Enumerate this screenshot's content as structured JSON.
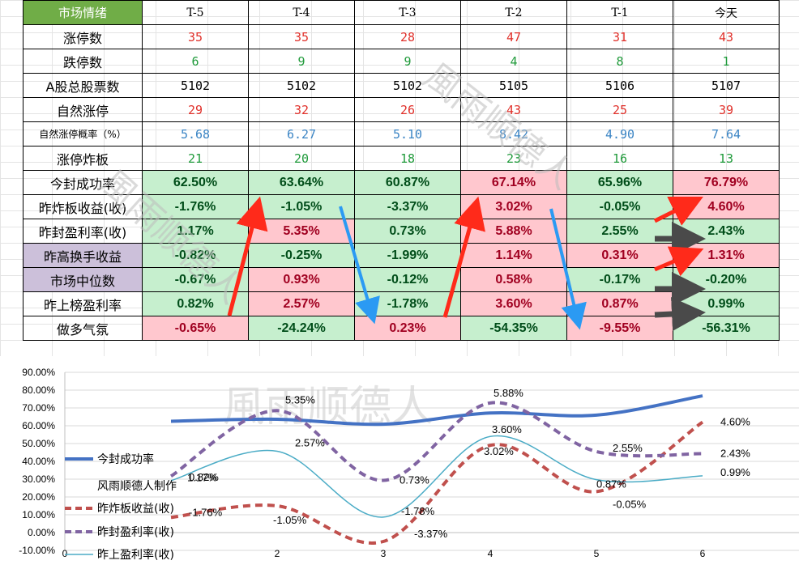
{
  "table": {
    "headers": [
      "市场情绪",
      "T-5",
      "T-4",
      "T-3",
      "T-2",
      "T-1",
      "今天"
    ],
    "rows": [
      {
        "label": "涨停数",
        "values": [
          "35",
          "35",
          "28",
          "47",
          "31",
          "43"
        ]
      },
      {
        "label": "跌停数",
        "values": [
          "6",
          "9",
          "9",
          "4",
          "8",
          "1"
        ]
      },
      {
        "label": "A股总股票数",
        "values": [
          "5102",
          "5102",
          "5102",
          "5105",
          "5106",
          "5107"
        ]
      },
      {
        "label": "自然涨停",
        "values": [
          "29",
          "32",
          "26",
          "43",
          "25",
          "39"
        ]
      },
      {
        "label": "自然涨停概率（%）",
        "values": [
          "5.68",
          "6.27",
          "5.10",
          "8.42",
          "4.90",
          "7.64"
        ]
      },
      {
        "label": "涨停炸板",
        "values": [
          "21",
          "20",
          "18",
          "23",
          "16",
          "13"
        ]
      },
      {
        "label": "今封成功率",
        "values": [
          "62.50%",
          "63.64%",
          "60.87%",
          "67.14%",
          "65.96%",
          "76.79%"
        ]
      },
      {
        "label": "昨炸板收益(收)",
        "values": [
          "-1.76%",
          "-1.05%",
          "-3.37%",
          "3.02%",
          "-0.05%",
          "4.60%"
        ]
      },
      {
        "label": "昨封盈利率(收)",
        "values": [
          "1.17%",
          "5.35%",
          "0.73%",
          "5.88%",
          "2.55%",
          "2.43%"
        ]
      },
      {
        "label": "昨高换手收益",
        "values": [
          "-0.82%",
          "-0.25%",
          "-1.99%",
          "1.14%",
          "0.31%",
          "1.31%"
        ]
      },
      {
        "label": "市场中位数",
        "values": [
          "-0.67%",
          "0.93%",
          "-0.12%",
          "0.58%",
          "-0.17%",
          "-0.20%"
        ]
      },
      {
        "label": "昨上榜盈利率",
        "values": [
          "0.82%",
          "2.57%",
          "-1.78%",
          "3.60%",
          "0.87%",
          "0.99%"
        ]
      },
      {
        "label": "做多气氛",
        "values": [
          "-0.65%",
          "-24.24%",
          "0.23%",
          "-54.35%",
          "-9.55%",
          "-56.31%"
        ]
      }
    ]
  },
  "watermark": "風雨顺德人",
  "chart_data": {
    "type": "line",
    "x": [
      1,
      2,
      3,
      4,
      5,
      6
    ],
    "xticks": [
      "0",
      "2",
      "3",
      "4",
      "5",
      "6"
    ],
    "ylim": [
      -10,
      90
    ],
    "yticks": [
      "90.00%",
      "80.00%",
      "70.00%",
      "60.00%",
      "50.00%",
      "40.00%",
      "30.00%",
      "20.00%",
      "10.00%",
      "0.00%",
      "-10.00%"
    ],
    "series": [
      {
        "name": "今封成功率",
        "color": "#4472c4",
        "style": "solid-thick",
        "values": [
          62.5,
          63.64,
          60.87,
          67.14,
          65.96,
          76.79
        ]
      },
      {
        "name": "昨炸板收益(收)",
        "color": "#c0504d",
        "style": "dashed",
        "values": [
          8.5,
          15,
          -5,
          49,
          23,
          62
        ],
        "labels": [
          "-1.76%",
          "-1.05%",
          "-3.37%",
          "3.02%",
          "-0.05%",
          "4.60%"
        ]
      },
      {
        "name": "昨封盈利率(收)",
        "color": "#8064a2",
        "style": "dashed",
        "values": [
          31.7,
          68.5,
          29.3,
          72.8,
          45.5,
          44.3
        ],
        "labels": [
          "1.17%",
          "5.35%",
          "0.73%",
          "5.88%",
          "2.55%",
          "2.43%"
        ]
      },
      {
        "name": "昨上盈利率(收)",
        "color": "#4bacc6",
        "style": "thin",
        "values": [
          29.2,
          45.7,
          8.7,
          54,
          29.7,
          31.9
        ],
        "labels": [
          "0.82%",
          "2.57%",
          "-1.78%",
          "3.60%",
          "0.87%",
          "0.99%"
        ]
      }
    ],
    "legend_extra": "风雨顺德人制作",
    "legend": "left"
  }
}
